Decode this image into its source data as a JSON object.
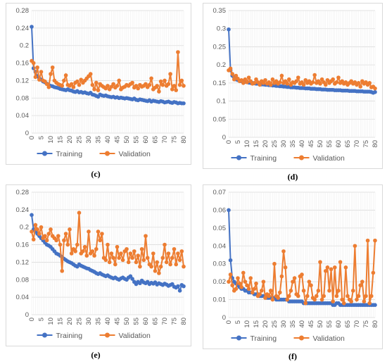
{
  "colors": {
    "training": "#4472c4",
    "validation": "#ed7d31",
    "grid": "#d9d9d9",
    "text": "#595959"
  },
  "chart_data": [
    {
      "id": "c",
      "caption": "(c)",
      "type": "line",
      "x": [
        0,
        1,
        2,
        3,
        4,
        5,
        6,
        7,
        8,
        9,
        10,
        11,
        12,
        13,
        14,
        15,
        16,
        17,
        18,
        19,
        20,
        21,
        22,
        23,
        24,
        25,
        26,
        27,
        28,
        29,
        30,
        31,
        32,
        33,
        34,
        35,
        36,
        37,
        38,
        39,
        40,
        41,
        42,
        43,
        44,
        45,
        46,
        47,
        48,
        49,
        50,
        51,
        52,
        53,
        54,
        55,
        56,
        57,
        58,
        59,
        60,
        61,
        62,
        63,
        64,
        65,
        66,
        67,
        68,
        69,
        70,
        71,
        72,
        73,
        74,
        75,
        76,
        77,
        78,
        79,
        80
      ],
      "xticks": [
        0,
        5,
        10,
        15,
        20,
        25,
        30,
        35,
        40,
        45,
        50,
        55,
        60,
        65,
        70,
        75,
        80
      ],
      "ylim": [
        0,
        0.28
      ],
      "yticks": [
        0,
        0.04,
        0.08,
        0.12,
        0.16,
        0.2,
        0.24,
        0.28
      ],
      "yticklabels": [
        "0",
        "0.04",
        "0.08",
        "0.12",
        "0.16",
        "0.2",
        "0.24",
        "0.28"
      ],
      "legend": [
        "Training",
        "Validation"
      ],
      "series": [
        {
          "name": "Training",
          "values": [
            0.243,
            0.148,
            0.14,
            0.13,
            0.125,
            0.122,
            0.118,
            0.116,
            0.113,
            0.11,
            0.108,
            0.107,
            0.105,
            0.104,
            0.103,
            0.101,
            0.1,
            0.099,
            0.098,
            0.1,
            0.098,
            0.097,
            0.095,
            0.094,
            0.096,
            0.093,
            0.094,
            0.092,
            0.093,
            0.091,
            0.09,
            0.092,
            0.088,
            0.087,
            0.085,
            0.083,
            0.088,
            0.086,
            0.085,
            0.086,
            0.084,
            0.083,
            0.082,
            0.083,
            0.081,
            0.082,
            0.08,
            0.081,
            0.08,
            0.079,
            0.08,
            0.079,
            0.078,
            0.077,
            0.079,
            0.076,
            0.075,
            0.077,
            0.076,
            0.075,
            0.074,
            0.073,
            0.075,
            0.072,
            0.074,
            0.073,
            0.072,
            0.071,
            0.073,
            0.072,
            0.07,
            0.071,
            0.072,
            0.07,
            0.069,
            0.071,
            0.07,
            0.068,
            0.069,
            0.068,
            0.068
          ]
        },
        {
          "name": "Validation",
          "values": [
            0.165,
            0.16,
            0.128,
            0.15,
            0.122,
            0.14,
            0.12,
            0.118,
            0.112,
            0.105,
            0.135,
            0.15,
            0.12,
            0.115,
            0.112,
            0.11,
            0.108,
            0.12,
            0.132,
            0.11,
            0.108,
            0.112,
            0.105,
            0.115,
            0.118,
            0.11,
            0.122,
            0.115,
            0.12,
            0.125,
            0.13,
            0.135,
            0.11,
            0.1,
            0.115,
            0.098,
            0.112,
            0.108,
            0.105,
            0.102,
            0.108,
            0.1,
            0.106,
            0.112,
            0.104,
            0.108,
            0.12,
            0.1,
            0.104,
            0.106,
            0.11,
            0.108,
            0.112,
            0.115,
            0.104,
            0.108,
            0.102,
            0.11,
            0.106,
            0.108,
            0.112,
            0.105,
            0.11,
            0.125,
            0.1,
            0.104,
            0.108,
            0.095,
            0.118,
            0.11,
            0.12,
            0.108,
            0.112,
            0.135,
            0.1,
            0.108,
            0.098,
            0.185,
            0.11,
            0.12,
            0.108
          ]
        }
      ]
    },
    {
      "id": "d",
      "caption": "(d)",
      "type": "line",
      "x": [
        0,
        1,
        2,
        3,
        4,
        5,
        6,
        7,
        8,
        9,
        10,
        11,
        12,
        13,
        14,
        15,
        16,
        17,
        18,
        19,
        20,
        21,
        22,
        23,
        24,
        25,
        26,
        27,
        28,
        29,
        30,
        31,
        32,
        33,
        34,
        35,
        36,
        37,
        38,
        39,
        40,
        41,
        42,
        43,
        44,
        45,
        46,
        47,
        48,
        49,
        50,
        51,
        52,
        53,
        54,
        55,
        56,
        57,
        58,
        59,
        60,
        61,
        62,
        63,
        64,
        65,
        66,
        67,
        68,
        69,
        70,
        71,
        72,
        73,
        74,
        75,
        76,
        77,
        78,
        79,
        80
      ],
      "xticks": [
        0,
        5,
        10,
        15,
        20,
        25,
        30,
        35,
        40,
        45,
        50,
        55,
        60,
        65,
        70,
        75,
        80
      ],
      "ylim": [
        0,
        0.35
      ],
      "yticks": [
        0,
        0.05,
        0.1,
        0.15,
        0.2,
        0.25,
        0.3,
        0.35
      ],
      "yticklabels": [
        "0",
        "0.05",
        "0.1",
        "0.15",
        "0.2",
        "0.25",
        "0.3",
        "0.35"
      ],
      "legend": [
        "Training",
        "Validation"
      ],
      "series": [
        {
          "name": "Training",
          "values": [
            0.298,
            0.185,
            0.17,
            0.165,
            0.16,
            0.158,
            0.156,
            0.155,
            0.154,
            0.153,
            0.152,
            0.151,
            0.15,
            0.15,
            0.149,
            0.148,
            0.148,
            0.147,
            0.146,
            0.146,
            0.145,
            0.145,
            0.144,
            0.144,
            0.143,
            0.143,
            0.142,
            0.142,
            0.141,
            0.141,
            0.14,
            0.14,
            0.139,
            0.139,
            0.138,
            0.138,
            0.138,
            0.137,
            0.137,
            0.136,
            0.136,
            0.136,
            0.135,
            0.135,
            0.135,
            0.134,
            0.134,
            0.134,
            0.133,
            0.133,
            0.133,
            0.132,
            0.132,
            0.132,
            0.131,
            0.131,
            0.131,
            0.131,
            0.13,
            0.13,
            0.13,
            0.13,
            0.129,
            0.129,
            0.129,
            0.129,
            0.128,
            0.128,
            0.128,
            0.128,
            0.127,
            0.127,
            0.127,
            0.127,
            0.126,
            0.126,
            0.126,
            0.126,
            0.125,
            0.123,
            0.125
          ]
        },
        {
          "name": "Validation",
          "values": [
            0.185,
            0.19,
            0.175,
            0.16,
            0.17,
            0.162,
            0.155,
            0.158,
            0.15,
            0.16,
            0.152,
            0.165,
            0.155,
            0.148,
            0.15,
            0.16,
            0.152,
            0.145,
            0.155,
            0.15,
            0.158,
            0.148,
            0.152,
            0.145,
            0.16,
            0.15,
            0.155,
            0.148,
            0.152,
            0.17,
            0.15,
            0.155,
            0.148,
            0.16,
            0.145,
            0.152,
            0.15,
            0.155,
            0.165,
            0.148,
            0.152,
            0.145,
            0.158,
            0.15,
            0.155,
            0.148,
            0.152,
            0.172,
            0.15,
            0.155,
            0.148,
            0.16,
            0.152,
            0.145,
            0.158,
            0.15,
            0.155,
            0.16,
            0.148,
            0.152,
            0.165,
            0.15,
            0.155,
            0.148,
            0.152,
            0.145,
            0.15,
            0.155,
            0.148,
            0.152,
            0.145,
            0.15,
            0.14,
            0.155,
            0.148,
            0.152,
            0.145,
            0.15,
            0.138,
            0.14,
            0.135
          ]
        }
      ]
    },
    {
      "id": "e",
      "caption": "(e)",
      "type": "line",
      "x": [
        0,
        1,
        2,
        3,
        4,
        5,
        6,
        7,
        8,
        9,
        10,
        11,
        12,
        13,
        14,
        15,
        16,
        17,
        18,
        19,
        20,
        21,
        22,
        23,
        24,
        25,
        26,
        27,
        28,
        29,
        30,
        31,
        32,
        33,
        34,
        35,
        36,
        37,
        38,
        39,
        40,
        41,
        42,
        43,
        44,
        45,
        46,
        47,
        48,
        49,
        50,
        51,
        52,
        53,
        54,
        55,
        56,
        57,
        58,
        59,
        60,
        61,
        62,
        63,
        64,
        65,
        66,
        67,
        68,
        69,
        70,
        71,
        72,
        73,
        74,
        75,
        76,
        77,
        78,
        79,
        80
      ],
      "xticks": [
        0,
        5,
        10,
        15,
        20,
        25,
        30,
        35,
        40,
        45,
        50,
        55,
        60,
        65,
        70,
        75,
        80
      ],
      "ylim": [
        0,
        0.28
      ],
      "yticks": [
        0,
        0.04,
        0.08,
        0.12,
        0.16,
        0.2,
        0.24,
        0.28
      ],
      "yticklabels": [
        "0",
        "0.04",
        "0.08",
        "0.12",
        "0.16",
        "0.2",
        "0.24",
        "0.28"
      ],
      "legend": [
        "Training",
        "Validation"
      ],
      "series": [
        {
          "name": "Training",
          "values": [
            0.228,
            0.195,
            0.19,
            0.185,
            0.18,
            0.175,
            0.17,
            0.165,
            0.16,
            0.158,
            0.155,
            0.15,
            0.145,
            0.14,
            0.138,
            0.135,
            0.132,
            0.128,
            0.125,
            0.122,
            0.12,
            0.118,
            0.115,
            0.112,
            0.11,
            0.115,
            0.112,
            0.11,
            0.108,
            0.106,
            0.105,
            0.102,
            0.1,
            0.098,
            0.095,
            0.093,
            0.095,
            0.092,
            0.09,
            0.088,
            0.09,
            0.087,
            0.085,
            0.083,
            0.085,
            0.082,
            0.08,
            0.083,
            0.085,
            0.082,
            0.08,
            0.085,
            0.088,
            0.082,
            0.075,
            0.07,
            0.075,
            0.072,
            0.078,
            0.074,
            0.072,
            0.075,
            0.07,
            0.073,
            0.071,
            0.074,
            0.069,
            0.072,
            0.07,
            0.068,
            0.071,
            0.069,
            0.066,
            0.068,
            0.07,
            0.064,
            0.062,
            0.065,
            0.055,
            0.068,
            0.065
          ]
        },
        {
          "name": "Validation",
          "values": [
            0.19,
            0.172,
            0.205,
            0.195,
            0.185,
            0.2,
            0.175,
            0.18,
            0.17,
            0.185,
            0.195,
            0.18,
            0.175,
            0.17,
            0.18,
            0.16,
            0.1,
            0.17,
            0.185,
            0.16,
            0.195,
            0.14,
            0.15,
            0.145,
            0.16,
            0.233,
            0.14,
            0.145,
            0.155,
            0.135,
            0.19,
            0.14,
            0.145,
            0.135,
            0.15,
            0.19,
            0.17,
            0.185,
            0.13,
            0.125,
            0.16,
            0.12,
            0.14,
            0.13,
            0.115,
            0.155,
            0.13,
            0.14,
            0.125,
            0.145,
            0.15,
            0.12,
            0.14,
            0.13,
            0.145,
            0.12,
            0.135,
            0.11,
            0.15,
            0.125,
            0.18,
            0.13,
            0.115,
            0.11,
            0.14,
            0.1,
            0.12,
            0.095,
            0.11,
            0.13,
            0.16,
            0.12,
            0.14,
            0.115,
            0.13,
            0.15,
            0.115,
            0.14,
            0.125,
            0.145,
            0.11
          ]
        }
      ]
    },
    {
      "id": "f",
      "caption": "(f)",
      "type": "line",
      "x": [
        0,
        1,
        2,
        3,
        4,
        5,
        6,
        7,
        8,
        9,
        10,
        11,
        12,
        13,
        14,
        15,
        16,
        17,
        18,
        19,
        20,
        21,
        22,
        23,
        24,
        25,
        26,
        27,
        28,
        29,
        30,
        31,
        32,
        33,
        34,
        35,
        36,
        37,
        38,
        39,
        40,
        41,
        42,
        43,
        44,
        45,
        46,
        47,
        48,
        49,
        50,
        51,
        52,
        53,
        54,
        55,
        56,
        57,
        58,
        59,
        60,
        61,
        62,
        63,
        64,
        65,
        66,
        67,
        68,
        69,
        70,
        71,
        72,
        73,
        74,
        75,
        76,
        77,
        78,
        79,
        80
      ],
      "xticks": [
        0,
        5,
        10,
        15,
        20,
        25,
        30,
        35,
        40,
        45,
        50,
        55,
        60,
        65,
        70,
        75,
        80
      ],
      "ylim": [
        0,
        0.07
      ],
      "yticks": [
        0,
        0.01,
        0.02,
        0.03,
        0.04,
        0.05,
        0.06,
        0.07
      ],
      "yticklabels": [
        "0",
        "0.01",
        "0.02",
        "0.03",
        "0.04",
        "0.05",
        "0.06",
        "0.07"
      ],
      "legend": [
        "Training",
        "Validation"
      ],
      "series": [
        {
          "name": "Training",
          "values": [
            0.06,
            0.032,
            0.022,
            0.02,
            0.019,
            0.018,
            0.017,
            0.016,
            0.016,
            0.015,
            0.015,
            0.014,
            0.014,
            0.014,
            0.013,
            0.013,
            0.013,
            0.012,
            0.012,
            0.012,
            0.012,
            0.011,
            0.011,
            0.011,
            0.011,
            0.011,
            0.01,
            0.01,
            0.01,
            0.01,
            0.01,
            0.01,
            0.01,
            0.009,
            0.009,
            0.009,
            0.009,
            0.009,
            0.009,
            0.009,
            0.009,
            0.008,
            0.008,
            0.008,
            0.008,
            0.008,
            0.008,
            0.008,
            0.008,
            0.008,
            0.008,
            0.008,
            0.008,
            0.008,
            0.008,
            0.008,
            0.008,
            0.007,
            0.007,
            0.008,
            0.008,
            0.007,
            0.007,
            0.007,
            0.007,
            0.007,
            0.007,
            0.007,
            0.007,
            0.007,
            0.007,
            0.007,
            0.007,
            0.007,
            0.007,
            0.007,
            0.007,
            0.007,
            0.007,
            0.007,
            0.007
          ]
        },
        {
          "name": "Validation",
          "values": [
            0.02,
            0.024,
            0.018,
            0.015,
            0.016,
            0.022,
            0.019,
            0.017,
            0.025,
            0.02,
            0.018,
            0.016,
            0.022,
            0.014,
            0.016,
            0.019,
            0.012,
            0.013,
            0.015,
            0.02,
            0.011,
            0.013,
            0.012,
            0.015,
            0.01,
            0.03,
            0.012,
            0.011,
            0.014,
            0.023,
            0.037,
            0.028,
            0.01,
            0.012,
            0.015,
            0.02,
            0.022,
            0.013,
            0.012,
            0.023,
            0.024,
            0.015,
            0.008,
            0.012,
            0.02,
            0.018,
            0.011,
            0.01,
            0.012,
            0.015,
            0.031,
            0.01,
            0.012,
            0.026,
            0.028,
            0.015,
            0.027,
            0.009,
            0.028,
            0.012,
            0.015,
            0.031,
            0.01,
            0.008,
            0.028,
            0.012,
            0.01,
            0.009,
            0.015,
            0.04,
            0.01,
            0.012,
            0.018,
            0.02,
            0.009,
            0.012,
            0.043,
            0.008,
            0.012,
            0.025,
            0.043
          ]
        }
      ]
    }
  ]
}
